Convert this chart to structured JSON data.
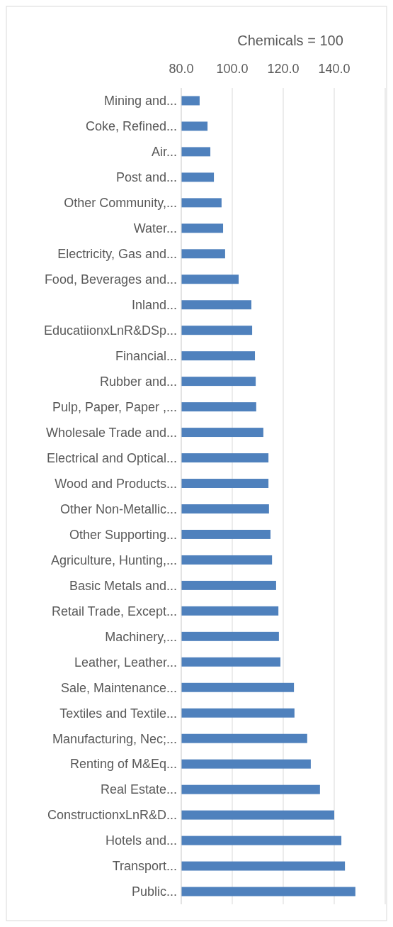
{
  "chart_data": {
    "type": "bar",
    "orientation": "horizontal",
    "title": "Chemicals = 100",
    "categories": [
      "Mining and...",
      "Coke, Refined...",
      "Air...",
      "Post and...",
      "Other Community,...",
      "Water...",
      "Electricity, Gas and...",
      "Food, Beverages and...",
      "Inland...",
      "EducatiionxLnR&DSp...",
      "Financial...",
      "Rubber and...",
      "Pulp, Paper, Paper ,...",
      "Wholesale Trade and...",
      "Electrical and Optical...",
      "Wood and Products...",
      "Other Non-Metallic...",
      "Other Supporting...",
      "Agriculture, Hunting,...",
      "Basic Metals and...",
      "Retail Trade, Except...",
      "Machinery,...",
      "Leather, Leather...",
      "Sale, Maintenance...",
      "Textiles and Textile...",
      "Manufacturing, Nec;...",
      "Renting of M&Eq...",
      "Real Estate...",
      "ConstructionxLnR&D...",
      "Hotels and...",
      "Transport...",
      "Public..."
    ],
    "values": [
      87.2,
      90.3,
      91.4,
      92.8,
      95.8,
      96.4,
      97.2,
      102.5,
      107.5,
      107.8,
      108.9,
      109.2,
      109.4,
      112.2,
      114.2,
      114.2,
      114.4,
      115.0,
      115.6,
      117.2,
      118.1,
      118.3,
      118.9,
      124.2,
      124.4,
      129.4,
      130.8,
      134.4,
      140.0,
      142.8,
      144.2,
      148.3
    ],
    "color": "#4f81bd",
    "xlim": [
      80,
      160
    ],
    "xticks": [
      {
        "value": 80,
        "label": "80.0"
      },
      {
        "value": 100,
        "label": "100.0"
      },
      {
        "value": 120,
        "label": "120.0"
      },
      {
        "value": 140,
        "label": "140.0"
      },
      {
        "value": 160,
        "label": null
      }
    ],
    "grid": "x"
  }
}
